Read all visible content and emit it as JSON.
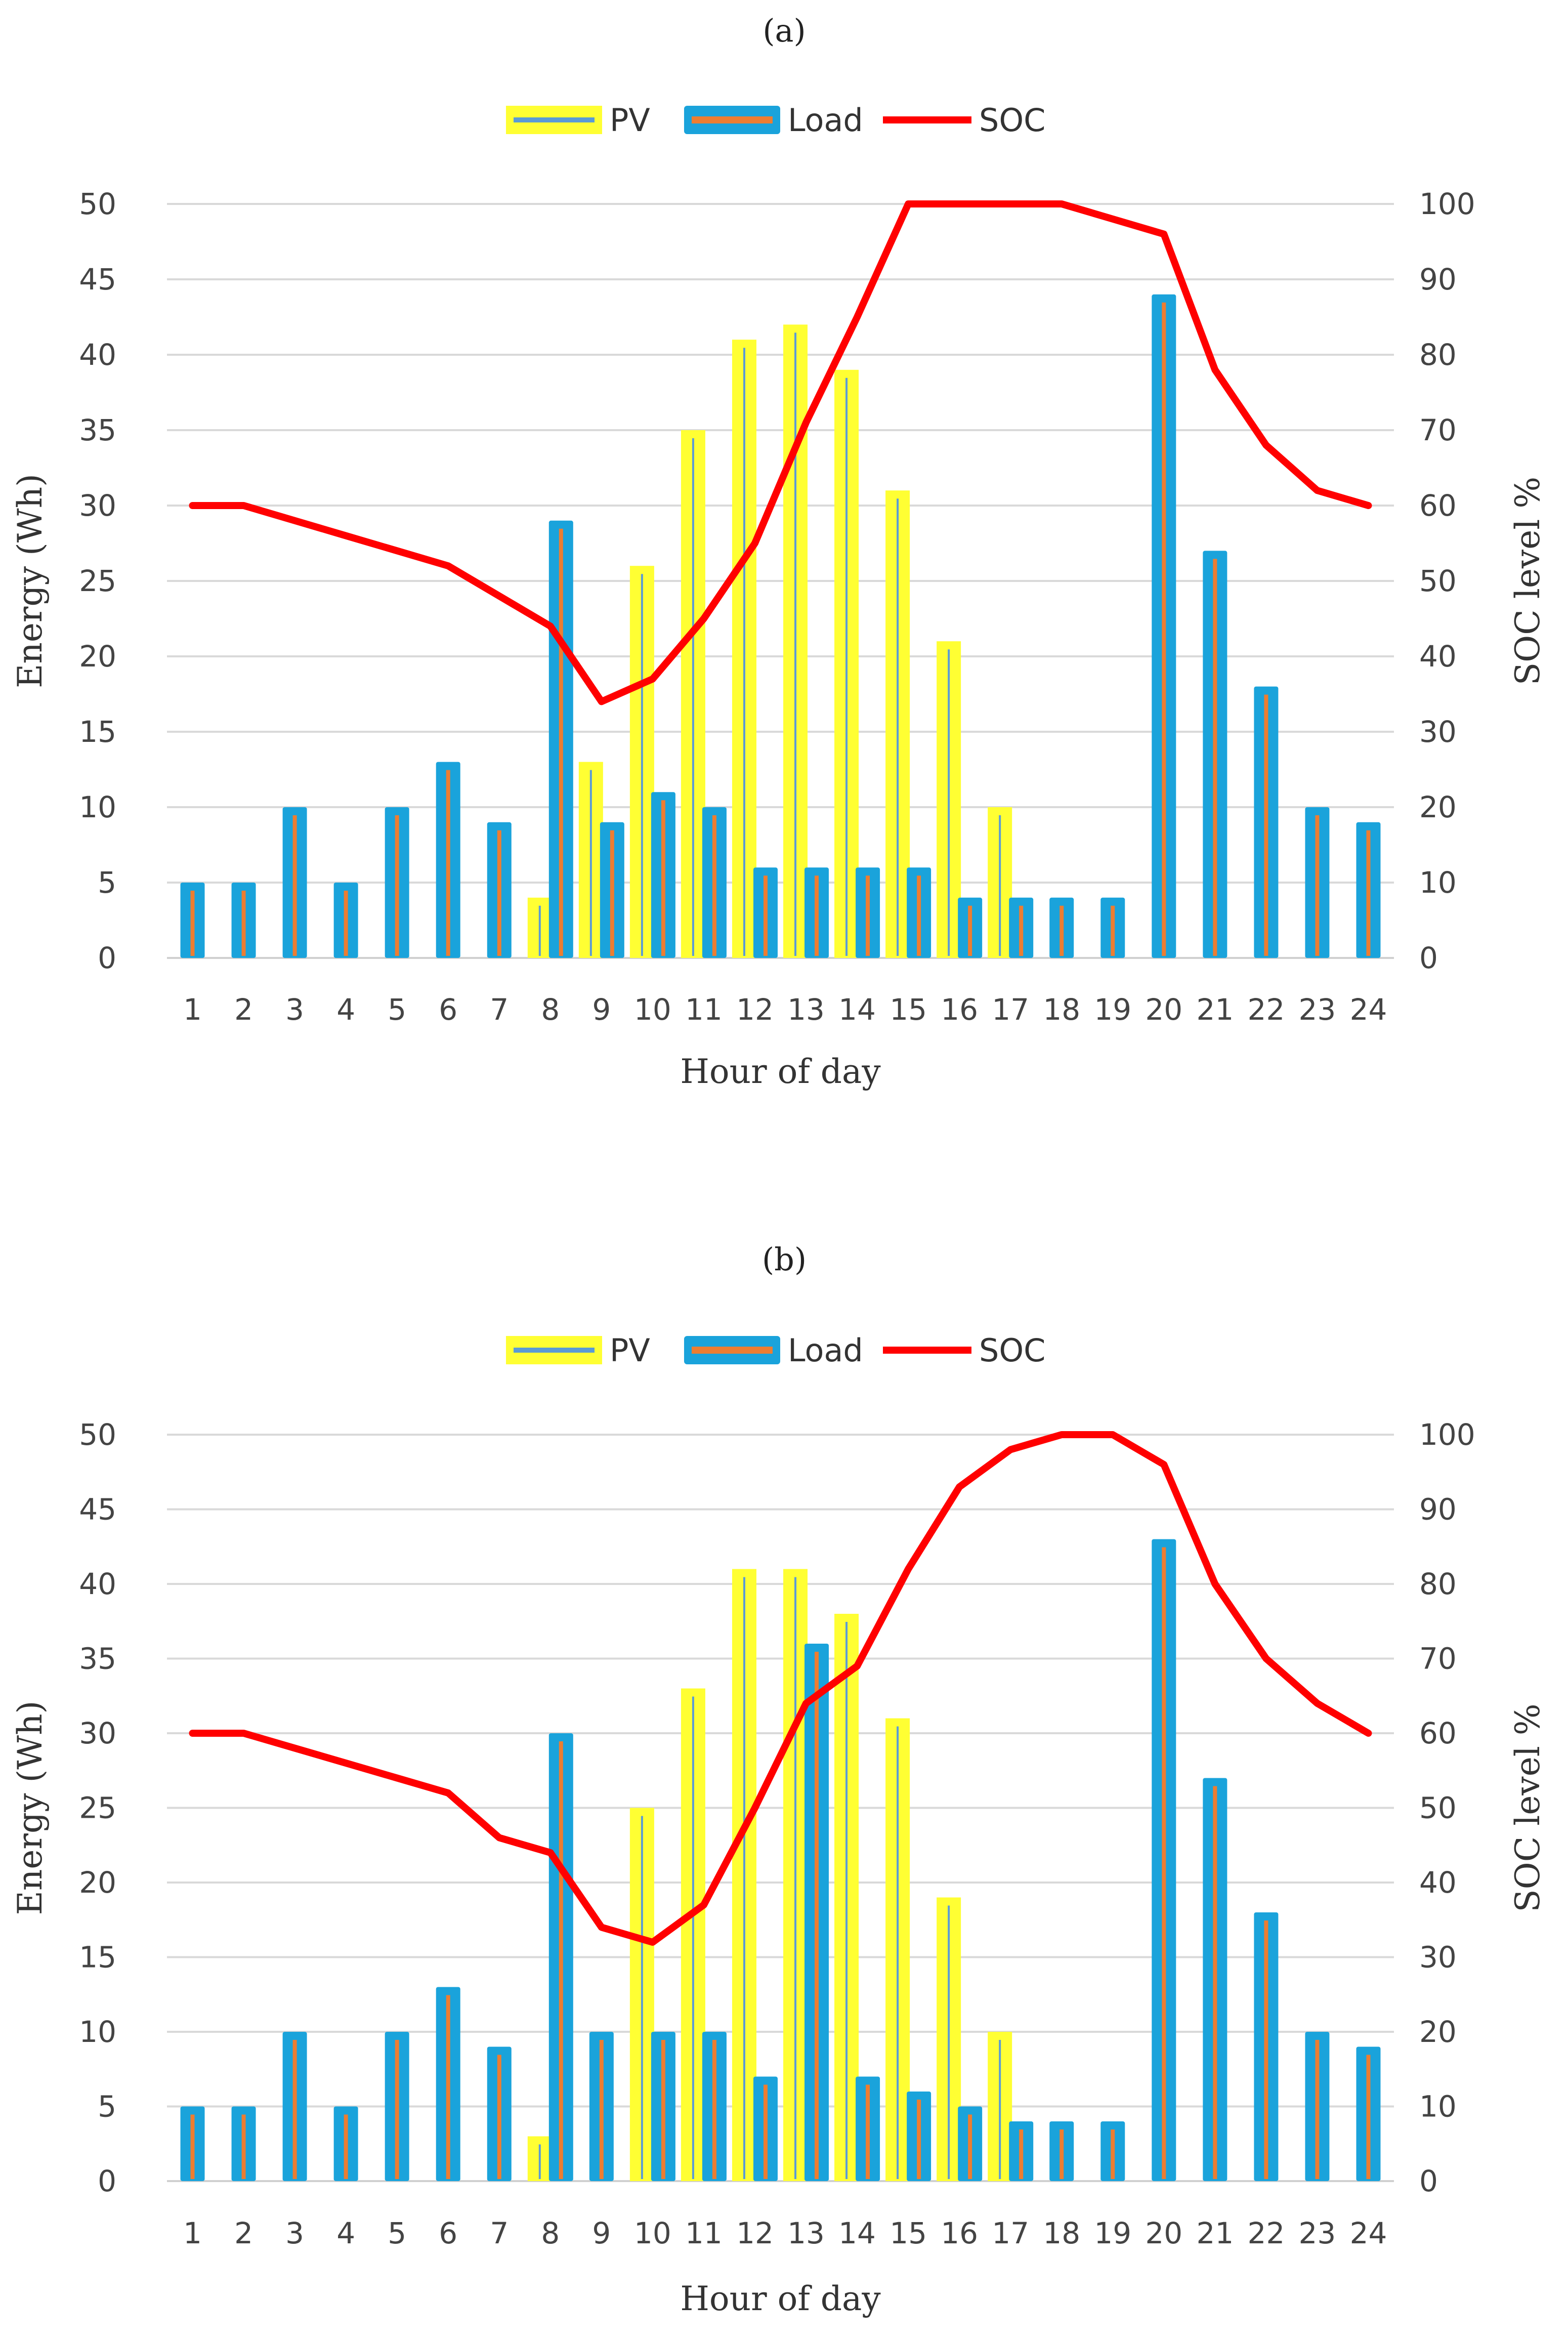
{
  "chart_data": [
    {
      "type": "bar",
      "panel_label": "(a)",
      "categories": [
        "1",
        "2",
        "3",
        "4",
        "5",
        "6",
        "7",
        "8",
        "9",
        "10",
        "11",
        "12",
        "13",
        "14",
        "15",
        "16",
        "17",
        "18",
        "19",
        "20",
        "21",
        "22",
        "23",
        "24"
      ],
      "series": [
        {
          "name": "PV",
          "type": "bar",
          "axis": "left",
          "values": [
            0,
            0,
            0,
            0,
            0,
            0,
            0,
            4,
            13,
            26,
            35,
            41,
            42,
            39,
            31,
            21,
            10,
            0,
            0,
            0,
            0,
            0,
            0,
            0
          ]
        },
        {
          "name": "Load",
          "type": "bar",
          "axis": "left",
          "values": [
            5,
            5,
            10,
            5,
            10,
            13,
            9,
            29,
            9,
            11,
            10,
            6,
            6,
            6,
            6,
            4,
            4,
            4,
            4,
            44,
            27,
            18,
            10,
            9
          ]
        },
        {
          "name": "SOC",
          "type": "line",
          "axis": "right",
          "values": [
            60,
            60,
            58,
            56,
            54,
            52,
            48,
            44,
            34,
            37,
            45,
            55,
            71,
            85,
            100,
            100,
            100,
            100,
            98,
            96,
            78,
            68,
            62,
            60
          ]
        }
      ],
      "legend": [
        "PV",
        "Load",
        "SOC"
      ],
      "legend_position": "top-center",
      "xlabel": "Hour of day",
      "ylabel": "Energy  (Wh)",
      "y2label": "SOC level %",
      "ylim": [
        0,
        50
      ],
      "y2lim": [
        0,
        100
      ],
      "yticks": [
        "0",
        "5",
        "10",
        "15",
        "20",
        "25",
        "30",
        "35",
        "40",
        "45",
        "50"
      ],
      "y2ticks": [
        "0",
        "10",
        "20",
        "30",
        "40",
        "50",
        "60",
        "70",
        "80",
        "90",
        "100"
      ],
      "grid": true
    },
    {
      "type": "bar",
      "panel_label": "(b)",
      "categories": [
        "1",
        "2",
        "3",
        "4",
        "5",
        "6",
        "7",
        "8",
        "9",
        "10",
        "11",
        "12",
        "13",
        "14",
        "15",
        "16",
        "17",
        "18",
        "19",
        "20",
        "21",
        "22",
        "23",
        "24"
      ],
      "series": [
        {
          "name": "PV",
          "type": "bar",
          "axis": "left",
          "values": [
            0,
            0,
            0,
            0,
            0,
            0,
            0,
            3,
            0,
            25,
            33,
            41,
            41,
            38,
            31,
            19,
            10,
            0,
            0,
            0,
            0,
            0,
            0,
            0
          ]
        },
        {
          "name": "Load",
          "type": "bar",
          "axis": "left",
          "values": [
            5,
            5,
            10,
            5,
            10,
            13,
            9,
            30,
            10,
            10,
            10,
            7,
            36,
            7,
            6,
            5,
            4,
            4,
            4,
            43,
            27,
            18,
            10,
            9
          ]
        },
        {
          "name": "SOC",
          "type": "line",
          "axis": "right",
          "values": [
            60,
            60,
            58,
            56,
            54,
            52,
            46,
            44,
            34,
            32,
            37,
            50,
            64,
            69,
            82,
            93,
            98,
            100,
            100,
            96,
            80,
            70,
            64,
            60
          ]
        }
      ],
      "legend": [
        "PV",
        "Load",
        "SOC"
      ],
      "legend_position": "top-center",
      "xlabel": "Hour of day",
      "ylabel": "Energy  (Wh)",
      "y2label": "SOC level %",
      "ylim": [
        0,
        50
      ],
      "y2lim": [
        0,
        100
      ],
      "yticks": [
        "0",
        "5",
        "10",
        "15",
        "20",
        "25",
        "30",
        "35",
        "40",
        "45",
        "50"
      ],
      "y2ticks": [
        "0",
        "10",
        "20",
        "30",
        "40",
        "50",
        "60",
        "70",
        "80",
        "90",
        "100"
      ],
      "grid": true
    }
  ],
  "colors": {
    "pv_fill": "#ffff33",
    "pv_line": "#5b9bd5",
    "load_fill": "#1aa3db",
    "load_line": "#ed7d31",
    "soc": "#ff0000"
  }
}
